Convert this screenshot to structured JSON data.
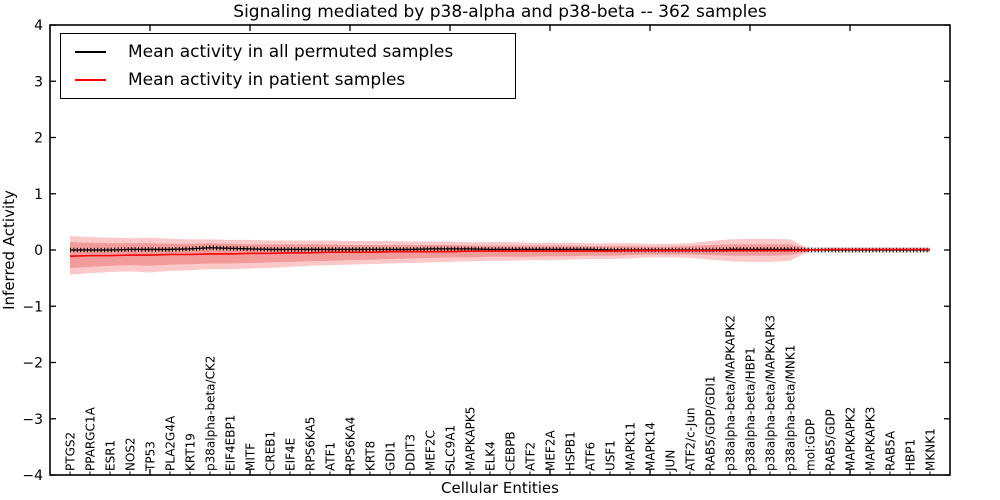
{
  "title": "Signaling mediated by p38-alpha and p38-beta -- 362 samples",
  "chart_data": {
    "type": "line",
    "title": "Signaling mediated by p38-alpha and p38-beta -- 362 samples",
    "xlabel": "Cellular Entities",
    "ylabel": "Inferred Activity",
    "ylim": [
      -4,
      4
    ],
    "grid": false,
    "legend_position": "upper left",
    "legend": [
      {
        "label": "Mean activity in all permuted samples",
        "color": "#000000"
      },
      {
        "label": "Mean activity in patient samples",
        "color": "#ff0000"
      }
    ],
    "yticks": [
      {
        "label": "4",
        "value": 4
      },
      {
        "label": "3",
        "value": 3
      },
      {
        "label": "2",
        "value": 2
      },
      {
        "label": "1",
        "value": 1
      },
      {
        "label": "0",
        "value": 0
      },
      {
        "label": "−1",
        "value": -1
      },
      {
        "label": "−2",
        "value": -2
      },
      {
        "label": "−3",
        "value": -3
      },
      {
        "label": "−4",
        "value": -4
      }
    ],
    "categories": [
      "PTGS2",
      "PPARGC1A",
      "ESR1",
      "NOS2",
      "TP53",
      "PLA2G4A",
      "KRT19",
      "p38alpha-beta/CK2",
      "EIF4EBP1",
      "MITF",
      "CREB1",
      "EIF4E",
      "RPS6KA5",
      "ATF1",
      "RPS6KA4",
      "KRT8",
      "GDI1",
      "DDIT3",
      "MEF2C",
      "SLC9A1",
      "MAPKAPK5",
      "ELK4",
      "CEBPB",
      "ATF2",
      "MEF2A",
      "HSPB1",
      "ATF6",
      "USF1",
      "MAPK11",
      "MAPK14",
      "JUN",
      "ATF2/c-Jun",
      "RAB5/GDP/GDI1",
      "p38alpha-beta/MAPKAPK2",
      "p38alpha-beta/HBP1",
      "p38alpha-beta/MAPKAPK3",
      "p38alpha-beta/MNK1",
      "mol:GDP",
      "RAB5/GDP",
      "MAPKAPK2",
      "MAPKAPK3",
      "RAB5A",
      "HBP1",
      "MKNK1"
    ],
    "series": [
      {
        "name": "Mean activity in all permuted samples",
        "color": "#000000",
        "values": [
          0.0,
          0.0,
          0.0,
          0.01,
          0.01,
          0.01,
          0.02,
          0.04,
          0.03,
          0.02,
          0.01,
          0.01,
          0.01,
          0.01,
          0.01,
          0.01,
          0.01,
          0.01,
          0.02,
          0.02,
          0.02,
          0.01,
          0.01,
          0.01,
          0.01,
          0.01,
          0.01,
          0.0,
          0.0,
          0.0,
          0.0,
          0.0,
          0.0,
          0.01,
          0.01,
          0.01,
          0.01,
          0.0,
          0.0,
          0.0,
          0.0,
          0.0,
          0.0,
          0.0
        ]
      },
      {
        "name": "Mean activity in patient samples",
        "color": "#ff0000",
        "values": [
          -0.11,
          -0.1,
          -0.1,
          -0.09,
          -0.09,
          -0.08,
          -0.08,
          -0.07,
          -0.07,
          -0.06,
          -0.06,
          -0.05,
          -0.05,
          -0.04,
          -0.04,
          -0.04,
          -0.03,
          -0.03,
          -0.03,
          -0.03,
          -0.02,
          -0.02,
          -0.02,
          -0.02,
          -0.02,
          -0.02,
          -0.02,
          -0.02,
          -0.01,
          -0.01,
          -0.01,
          -0.01,
          -0.01,
          -0.01,
          -0.01,
          -0.01,
          -0.01,
          0.0,
          0.01,
          0.01,
          0.01,
          0.01,
          0.01,
          0.01
        ]
      }
    ],
    "bands": [
      {
        "name": "permuted-std",
        "color": "#e0e0e0",
        "top": 0.05,
        "bottom": -0.05
      },
      {
        "name": "patient-outer",
        "color": "#fbc9c9",
        "top": [
          0.25,
          0.23,
          0.22,
          0.21,
          0.22,
          0.2,
          0.19,
          0.19,
          0.18,
          0.18,
          0.17,
          0.17,
          0.17,
          0.17,
          0.16,
          0.16,
          0.16,
          0.15,
          0.15,
          0.15,
          0.14,
          0.14,
          0.14,
          0.13,
          0.13,
          0.13,
          0.12,
          0.12,
          0.12,
          0.11,
          0.11,
          0.12,
          0.16,
          0.19,
          0.2,
          0.2,
          0.19,
          0.02,
          0,
          0,
          0,
          0,
          0,
          0
        ],
        "bottom": [
          -0.44,
          -0.41,
          -0.39,
          -0.38,
          -0.4,
          -0.37,
          -0.36,
          -0.34,
          -0.34,
          -0.33,
          -0.32,
          -0.3,
          -0.28,
          -0.27,
          -0.26,
          -0.25,
          -0.24,
          -0.23,
          -0.22,
          -0.21,
          -0.2,
          -0.19,
          -0.19,
          -0.18,
          -0.18,
          -0.17,
          -0.16,
          -0.16,
          -0.15,
          -0.13,
          -0.13,
          -0.14,
          -0.17,
          -0.2,
          -0.21,
          -0.21,
          -0.19,
          -0.02,
          0,
          0,
          0,
          0,
          0,
          0
        ]
      },
      {
        "name": "patient-inner",
        "color": "#f29b9b",
        "top": [
          0.14,
          0.13,
          0.12,
          0.12,
          0.12,
          0.11,
          0.11,
          0.12,
          0.11,
          0.1,
          0.1,
          0.1,
          0.1,
          0.1,
          0.09,
          0.09,
          0.09,
          0.09,
          0.09,
          0.09,
          0.08,
          0.08,
          0.08,
          0.08,
          0.08,
          0.08,
          0.07,
          0.07,
          0.07,
          0.06,
          0.06,
          0.07,
          0.09,
          0.1,
          0.1,
          0.1,
          0.1,
          0.02,
          0,
          0,
          0,
          0,
          0,
          0
        ],
        "bottom": [
          -0.32,
          -0.3,
          -0.28,
          -0.27,
          -0.28,
          -0.26,
          -0.25,
          -0.24,
          -0.24,
          -0.23,
          -0.22,
          -0.21,
          -0.2,
          -0.19,
          -0.18,
          -0.17,
          -0.16,
          -0.15,
          -0.14,
          -0.13,
          -0.13,
          -0.12,
          -0.12,
          -0.12,
          -0.11,
          -0.11,
          -0.1,
          -0.1,
          -0.09,
          -0.08,
          -0.08,
          -0.08,
          -0.09,
          -0.1,
          -0.1,
          -0.1,
          -0.09,
          -0.02,
          0,
          0,
          0,
          0,
          0,
          0
        ]
      }
    ],
    "colors": {
      "frame": "#000000",
      "background": "#ffffff"
    }
  }
}
